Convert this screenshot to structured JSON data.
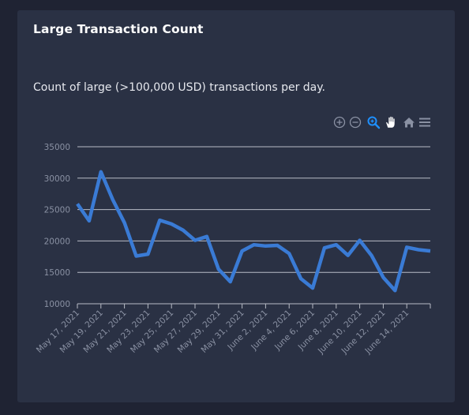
{
  "card": {
    "title": "Large Transaction Count",
    "description": "Count of large (>100,000 USD) transactions per day."
  },
  "toolbar": {
    "icons": [
      "zoom-in-icon",
      "zoom-out-icon",
      "selection-zoom-icon",
      "pan-hand-icon",
      "home-reset-icon",
      "menu-icon"
    ],
    "active": "selection-zoom-icon"
  },
  "colors": {
    "page_background": "#1f2333",
    "card_background": "#2a3144",
    "line": "#3a7bd5",
    "grid": "#b8bcc6",
    "toolbar_active": "#1e90ff"
  },
  "chart_data": {
    "type": "line",
    "y_ticks": [
      "35000",
      "30000",
      "25000",
      "20000",
      "15000",
      "10000"
    ],
    "y_tick_values": [
      35000,
      30000,
      25000,
      20000,
      15000,
      10000
    ],
    "ylim": [
      10000,
      35000
    ],
    "x_tick_labels": [
      "May 17, 2021",
      "May 19, 2021",
      "May 21, 2021",
      "May 23, 2021",
      "May 25, 2021",
      "May 27, 2021",
      "May 29, 2021",
      "May 31, 2021",
      "June 2, 2021",
      "June 4, 2021",
      "June 6, 2021",
      "June 8, 2021",
      "June 10, 2021",
      "June 12, 2021",
      "June 14, 2021"
    ],
    "x": [
      "2021-05-17",
      "2021-05-18",
      "2021-05-19",
      "2021-05-20",
      "2021-05-21",
      "2021-05-22",
      "2021-05-23",
      "2021-05-24",
      "2021-05-25",
      "2021-05-26",
      "2021-05-27",
      "2021-05-28",
      "2021-05-29",
      "2021-05-30",
      "2021-05-31",
      "2021-06-01",
      "2021-06-02",
      "2021-06-03",
      "2021-06-04",
      "2021-06-05",
      "2021-06-06",
      "2021-06-07",
      "2021-06-08",
      "2021-06-09",
      "2021-06-10",
      "2021-06-11",
      "2021-06-12",
      "2021-06-13",
      "2021-06-14",
      "2021-06-15",
      "2021-06-16"
    ],
    "series": [
      {
        "values": [
          25900,
          23200,
          31000,
          26600,
          22900,
          17600,
          17900,
          23300,
          22700,
          21700,
          20100,
          20700,
          15500,
          13500,
          18400,
          19400,
          19200,
          19300,
          18000,
          14000,
          12500,
          18900,
          19400,
          17700,
          20100,
          17700,
          14200,
          12100,
          19000,
          18600,
          18400
        ]
      }
    ],
    "grid": true,
    "title": "",
    "xlabel": "",
    "ylabel": ""
  }
}
